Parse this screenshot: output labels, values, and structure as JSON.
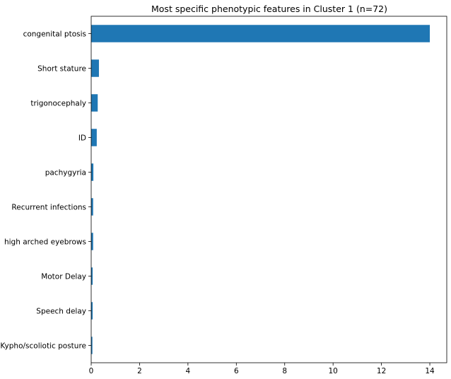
{
  "chart_data": {
    "type": "bar",
    "orientation": "horizontal",
    "title": "Most specific phenotypic features in Cluster 1 (n=72)",
    "xlabel": "",
    "ylabel": "",
    "categories": [
      "congenital ptosis",
      "Short stature",
      "trigonocephaly",
      "ID",
      "pachygyria",
      "Recurrent infections",
      "high arched eyebrows",
      "Motor Delay",
      "Speech delay",
      "Kypho/scoliotic posture"
    ],
    "values": [
      14.0,
      0.32,
      0.27,
      0.23,
      0.09,
      0.08,
      0.08,
      0.06,
      0.06,
      0.05
    ],
    "xlim": [
      0,
      14.7
    ],
    "xticks": [
      0,
      2,
      4,
      6,
      8,
      10,
      12,
      14
    ],
    "bar_color": "#1f77b4",
    "grid": false,
    "legend": "none"
  }
}
